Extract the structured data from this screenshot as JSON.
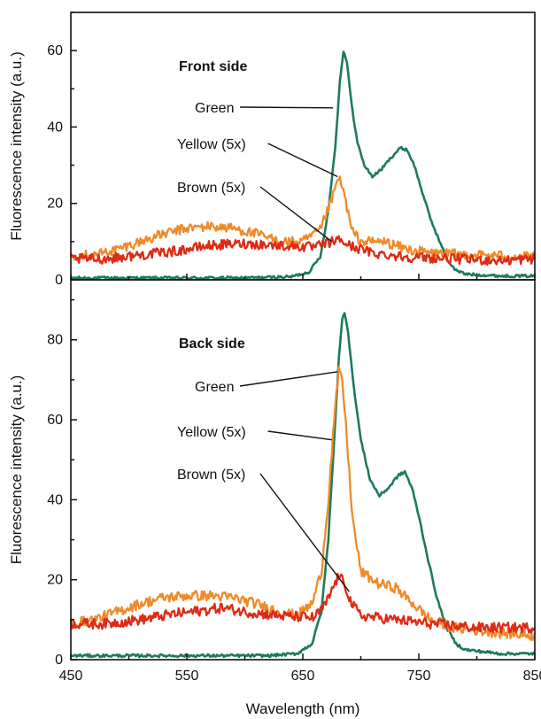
{
  "chart_data": [
    {
      "type": "line",
      "panel": "top",
      "title": "Front side",
      "xlabel": "",
      "ylabel": "Fluorescence intensity (a.u.)",
      "xlim": [
        450,
        850
      ],
      "ylim": [
        0,
        70
      ],
      "xticks": [
        450,
        550,
        650,
        750,
        850
      ],
      "yticks": [
        0,
        20,
        40,
        60
      ],
      "grid": false,
      "series": [
        {
          "name": "Green",
          "color": "#1f7a5c",
          "points": [
            [
              450,
              0.5
            ],
            [
              600,
              0.5
            ],
            [
              640,
              0.8
            ],
            [
              655,
              2
            ],
            [
              665,
              6
            ],
            [
              672,
              18
            ],
            [
              678,
              35
            ],
            [
              682,
              52
            ],
            [
              685,
              60
            ],
            [
              688,
              57
            ],
            [
              692,
              46
            ],
            [
              697,
              36
            ],
            [
              703,
              30
            ],
            [
              710,
              27
            ],
            [
              718,
              29
            ],
            [
              726,
              32
            ],
            [
              734,
              34.5
            ],
            [
              740,
              34
            ],
            [
              746,
              30
            ],
            [
              752,
              24
            ],
            [
              760,
              16
            ],
            [
              768,
              10
            ],
            [
              775,
              5
            ],
            [
              782,
              2.5
            ],
            [
              790,
              1.5
            ],
            [
              820,
              1
            ],
            [
              850,
              1
            ]
          ]
        },
        {
          "name": "Yellow (5x)",
          "color": "#f08a2a",
          "points": [
            [
              450,
              6.5
            ],
            [
              470,
              6.5
            ],
            [
              490,
              8
            ],
            [
              510,
              10
            ],
            [
              530,
              12
            ],
            [
              550,
              13.5
            ],
            [
              570,
              14
            ],
            [
              590,
              13.5
            ],
            [
              610,
              12
            ],
            [
              630,
              10
            ],
            [
              650,
              10
            ],
            [
              665,
              13
            ],
            [
              675,
              21
            ],
            [
              681,
              27
            ],
            [
              686,
              22
            ],
            [
              692,
              13
            ],
            [
              700,
              10
            ],
            [
              720,
              10
            ],
            [
              740,
              8
            ],
            [
              760,
              7
            ],
            [
              800,
              6.5
            ],
            [
              850,
              6
            ]
          ]
        },
        {
          "name": "Brown (5x)",
          "color": "#dd2b16",
          "points": [
            [
              450,
              5.5
            ],
            [
              480,
              5.5
            ],
            [
              510,
              6.5
            ],
            [
              540,
              7.5
            ],
            [
              570,
              9
            ],
            [
              600,
              9.5
            ],
            [
              630,
              9
            ],
            [
              660,
              8.5
            ],
            [
              675,
              10
            ],
            [
              682,
              10.5
            ],
            [
              690,
              9
            ],
            [
              710,
              7
            ],
            [
              740,
              6
            ],
            [
              780,
              5.5
            ],
            [
              820,
              5
            ],
            [
              850,
              5.5
            ]
          ]
        }
      ],
      "annotations": [
        {
          "text": "Green",
          "series": "Green",
          "pointer_to": [
            676,
            45
          ]
        },
        {
          "text": "Yellow (5x)",
          "series": "Yellow (5x)",
          "pointer_to": [
            680,
            27
          ]
        },
        {
          "text": "Brown (5x)",
          "series": "Brown (5x)",
          "pointer_to": [
            675,
            10
          ]
        }
      ]
    },
    {
      "type": "line",
      "panel": "bottom",
      "title": "Back side",
      "xlabel": "Wavelength (nm)",
      "ylabel": "Fluorescence intensity (a.u.)",
      "xlim": [
        450,
        850
      ],
      "ylim": [
        0,
        95
      ],
      "xticks": [
        450,
        550,
        650,
        750,
        850
      ],
      "yticks": [
        0,
        20,
        40,
        60,
        80
      ],
      "grid": false,
      "series": [
        {
          "name": "Green",
          "color": "#1f7a5c",
          "points": [
            [
              450,
              1
            ],
            [
              620,
              1
            ],
            [
              645,
              1.5
            ],
            [
              658,
              4
            ],
            [
              666,
              12
            ],
            [
              672,
              30
            ],
            [
              677,
              55
            ],
            [
              681,
              75
            ],
            [
              684,
              85
            ],
            [
              686,
              87
            ],
            [
              689,
              82
            ],
            [
              694,
              68
            ],
            [
              700,
              55
            ],
            [
              708,
              45
            ],
            [
              716,
              41
            ],
            [
              724,
              43
            ],
            [
              732,
              46
            ],
            [
              738,
              47
            ],
            [
              744,
              43
            ],
            [
              750,
              36
            ],
            [
              758,
              25
            ],
            [
              766,
              15
            ],
            [
              774,
              8
            ],
            [
              782,
              4
            ],
            [
              790,
              2.5
            ],
            [
              820,
              1.5
            ],
            [
              850,
              1.5
            ]
          ]
        },
        {
          "name": "Yellow (5x)",
          "color": "#f08a2a",
          "points": [
            [
              450,
              9
            ],
            [
              470,
              10
            ],
            [
              490,
              12
            ],
            [
              510,
              14
            ],
            [
              530,
              15.5
            ],
            [
              550,
              16
            ],
            [
              570,
              16
            ],
            [
              590,
              15.5
            ],
            [
              610,
              14
            ],
            [
              630,
              12
            ],
            [
              645,
              11
            ],
            [
              658,
              14
            ],
            [
              666,
              22
            ],
            [
              672,
              40
            ],
            [
              677,
              60
            ],
            [
              681,
              72
            ],
            [
              684,
              70
            ],
            [
              688,
              55
            ],
            [
              693,
              35
            ],
            [
              700,
              22
            ],
            [
              715,
              19
            ],
            [
              730,
              18
            ],
            [
              745,
              14
            ],
            [
              760,
              10
            ],
            [
              780,
              8
            ],
            [
              810,
              7
            ],
            [
              850,
              6
            ]
          ]
        },
        {
          "name": "Brown (5x)",
          "color": "#dd2b16",
          "points": [
            [
              450,
              9
            ],
            [
              480,
              9
            ],
            [
              510,
              10
            ],
            [
              540,
              11.5
            ],
            [
              570,
              12.5
            ],
            [
              580,
              13
            ],
            [
              600,
              12
            ],
            [
              630,
              11
            ],
            [
              660,
              10.5
            ],
            [
              670,
              14
            ],
            [
              676,
              18
            ],
            [
              681,
              21
            ],
            [
              686,
              19
            ],
            [
              692,
              14
            ],
            [
              700,
              11
            ],
            [
              730,
              10
            ],
            [
              760,
              9
            ],
            [
              800,
              8
            ],
            [
              850,
              8
            ]
          ]
        }
      ],
      "annotations": [
        {
          "text": "Green",
          "series": "Green",
          "pointer_to": [
            680,
            72
          ]
        },
        {
          "text": "Yellow (5x)",
          "series": "Yellow (5x)",
          "pointer_to": [
            675,
            55
          ]
        },
        {
          "text": "Brown (5x)",
          "series": "Brown (5x)",
          "pointer_to": [
            690,
            17
          ]
        }
      ]
    }
  ]
}
